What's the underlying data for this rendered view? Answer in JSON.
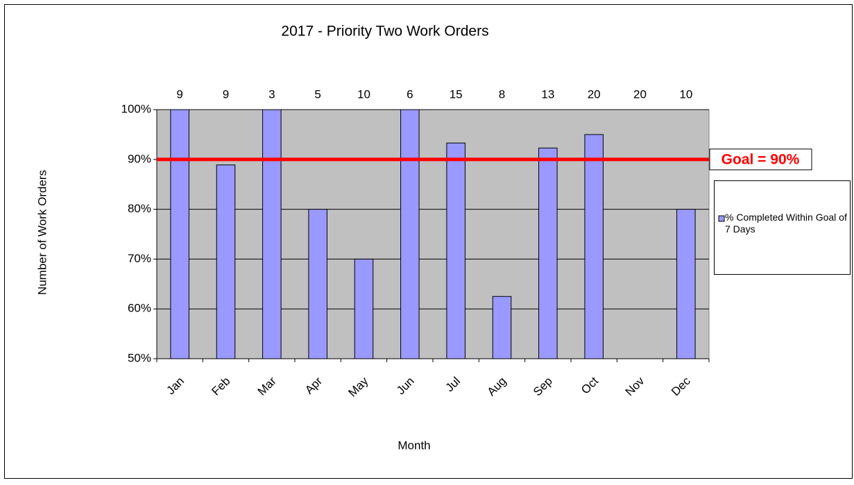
{
  "chart_data": {
    "type": "bar",
    "title": "2017 - Priority Two  Work Orders",
    "x_label": "Month",
    "y_label": "Number  of Work Orders",
    "categories": [
      "Jan",
      "Feb",
      "Mar",
      "Apr",
      "May",
      "Jun",
      "Jul",
      "Aug",
      "Sep",
      "Oct",
      "Nov",
      "Dec"
    ],
    "series": [
      {
        "name": "% Completed Within Goal of 7 Days",
        "color": "#9999ff",
        "values": [
          100,
          88.9,
          100,
          80,
          70,
          100,
          93.3,
          62.5,
          92.3,
          95,
          null,
          80
        ]
      }
    ],
    "counts": [
      9,
      9,
      3,
      5,
      10,
      6,
      15,
      8,
      13,
      20,
      20,
      10
    ],
    "goal": {
      "value": 90,
      "label": "Goal = 90%",
      "color": "#ff0000"
    },
    "ylim": [
      50,
      100
    ],
    "yticks": [
      {
        "value": 50,
        "label": "50%"
      },
      {
        "value": 60,
        "label": "60%"
      },
      {
        "value": 70,
        "label": "70%"
      },
      {
        "value": 80,
        "label": "80%"
      },
      {
        "value": 90,
        "label": "90%"
      },
      {
        "value": 100,
        "label": "100%"
      }
    ],
    "grid": true,
    "legend": "right"
  }
}
